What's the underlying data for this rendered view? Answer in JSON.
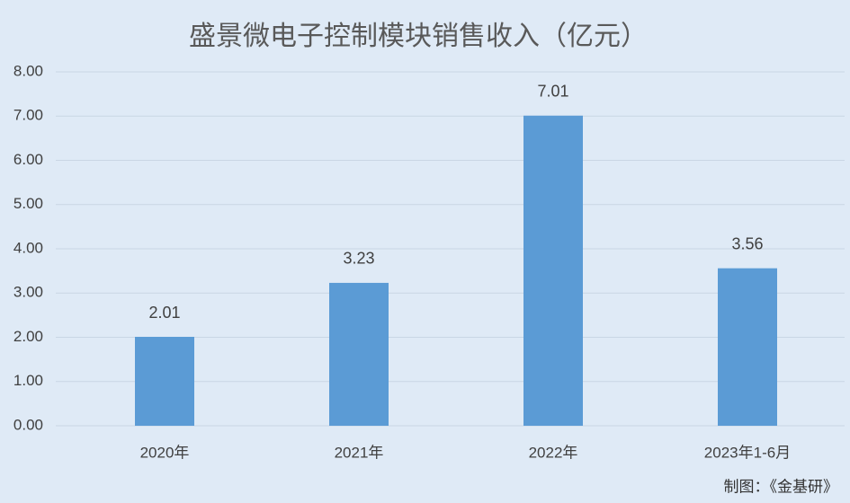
{
  "chart_data": {
    "type": "bar",
    "title": "盛景微电子控制模块销售收入（亿元）",
    "categories": [
      "2020年",
      "2021年",
      "2022年",
      "2023年1-6月"
    ],
    "values": [
      2.01,
      3.23,
      7.01,
      3.56
    ],
    "color": "#5b9bd5",
    "ylim": [
      0,
      8
    ],
    "yticks": [
      {
        "value": 0,
        "label": "0.00"
      },
      {
        "value": 1,
        "label": "1.00"
      },
      {
        "value": 2,
        "label": "2.00"
      },
      {
        "value": 3,
        "label": "3.00"
      },
      {
        "value": 4,
        "label": "4.00"
      },
      {
        "value": 5,
        "label": "5.00"
      },
      {
        "value": 6,
        "label": "6.00"
      },
      {
        "value": 7,
        "label": "7.00"
      },
      {
        "value": 8,
        "label": "8.00"
      }
    ],
    "grid": true,
    "source": "制图：《金基研》"
  }
}
